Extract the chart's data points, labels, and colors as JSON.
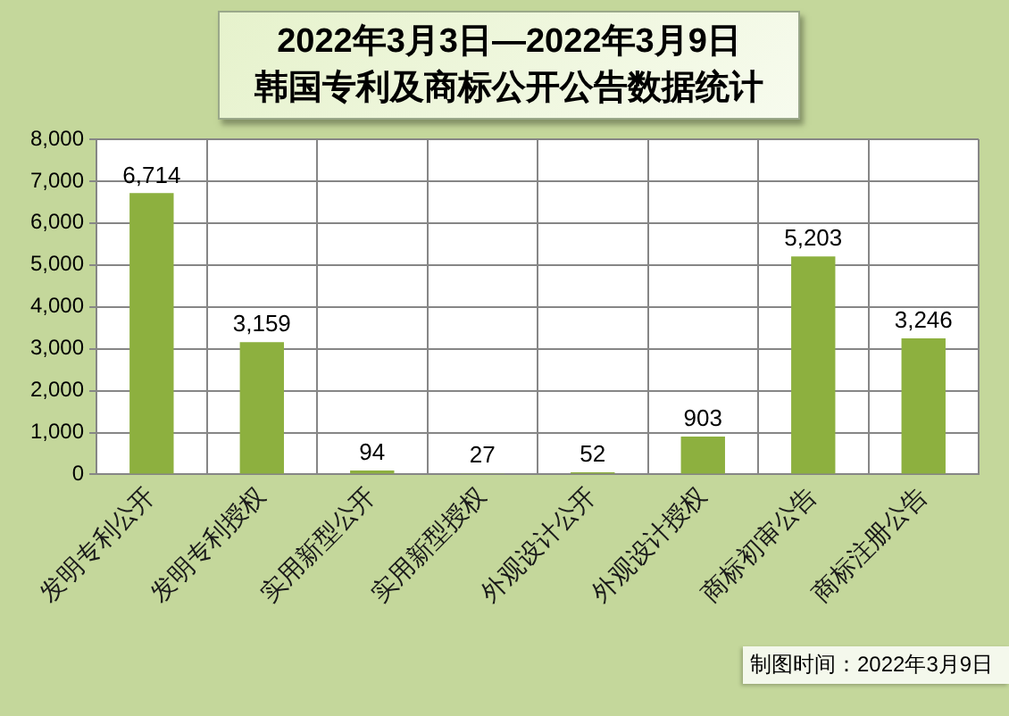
{
  "chart_data": {
    "type": "bar",
    "title": "2022年3月3日—2022年3月9日",
    "subtitle": "韩国专利及商标公开公告数据统计",
    "categories": [
      "发明专利公开",
      "发明专利授权",
      "实用新型公开",
      "实用新型授权",
      "外观设计公开",
      "外观设计授权",
      "商标初审公告",
      "商标注册公告"
    ],
    "values": [
      6714,
      3159,
      94,
      27,
      52,
      903,
      5203,
      3246
    ],
    "value_labels": [
      "6,714",
      "3,159",
      "94",
      "27",
      "52",
      "903",
      "5,203",
      "3,246"
    ],
    "color": "#8db03f",
    "ylim": [
      0,
      8000
    ],
    "yticks": [
      0,
      {
        "value": 1000,
        "label": "1,000"
      },
      {
        "value": 2000,
        "label": "2,000"
      },
      {
        "value": 3000,
        "label": "3,000"
      },
      {
        "value": 4000,
        "label": "4,000"
      },
      {
        "value": 5000,
        "label": "5,000"
      },
      {
        "value": 6000,
        "label": "6,000"
      },
      {
        "value": 7000,
        "label": "7,000"
      },
      {
        "value": 8000,
        "label": "8,000"
      }
    ],
    "grid": true,
    "annotations": [
      "制图时间：2022年3月9日"
    ]
  }
}
